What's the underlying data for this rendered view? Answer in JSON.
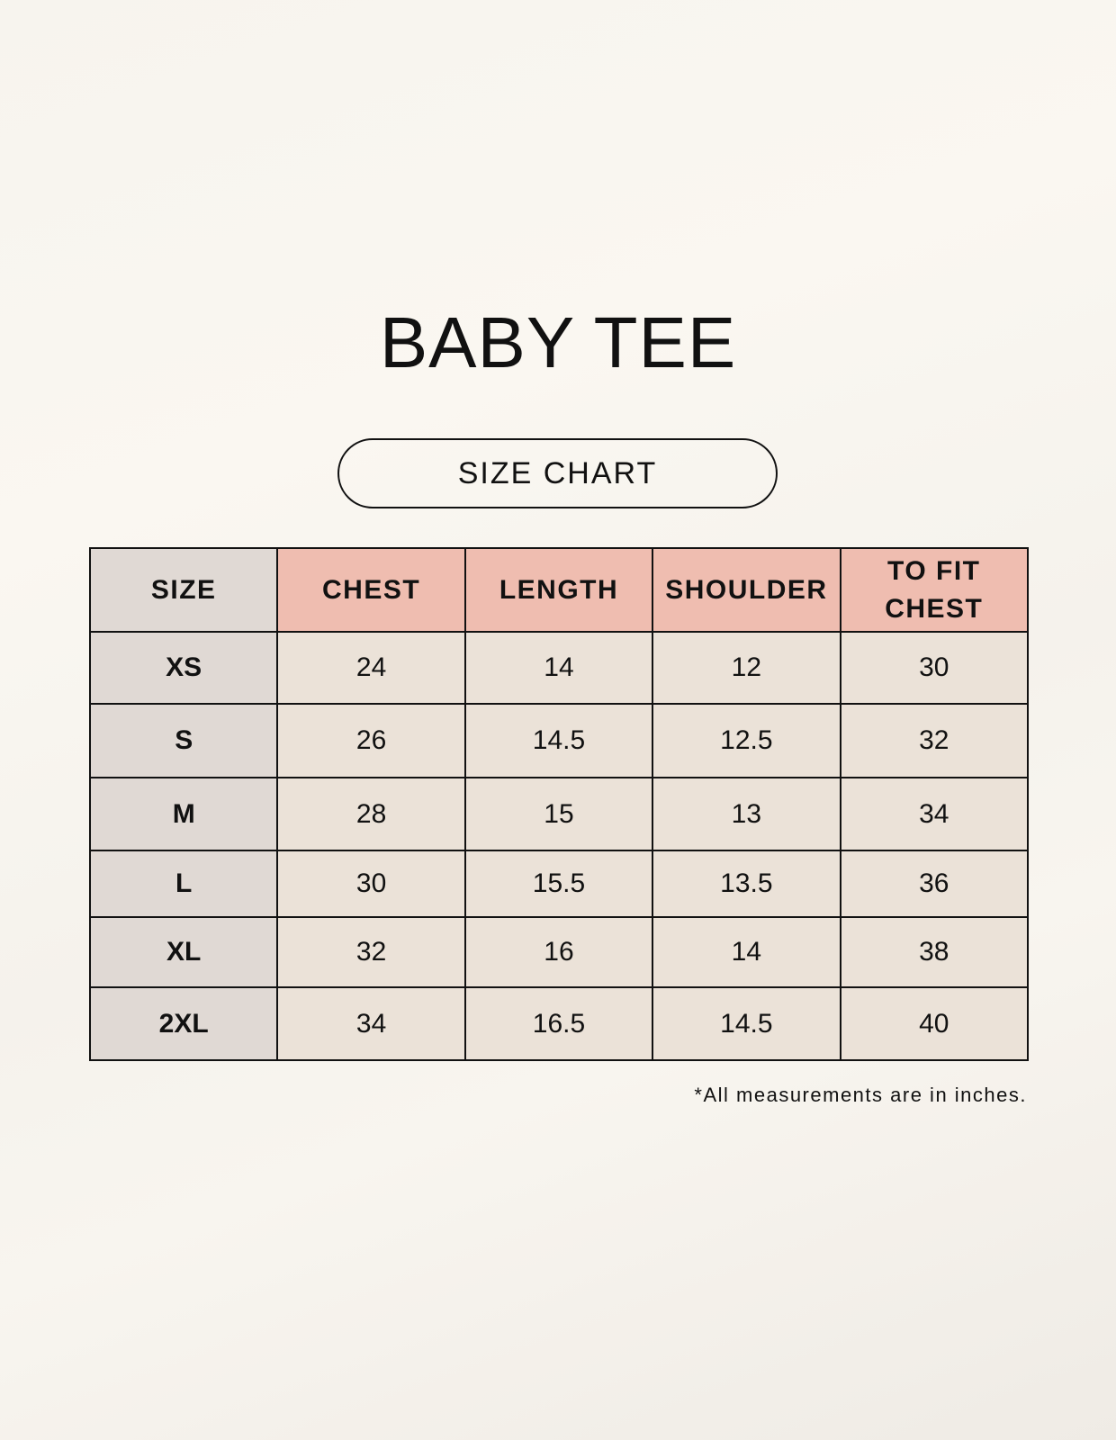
{
  "title": "BABY TEE",
  "subtitle": "SIZE CHART",
  "table": {
    "headers": [
      "SIZE",
      "CHEST",
      "LENGTH",
      "SHOULDER",
      "TO FIT CHEST"
    ],
    "rows": [
      [
        "XS",
        "24",
        "14",
        "12",
        "30"
      ],
      [
        "S",
        "26",
        "14.5",
        "12.5",
        "32"
      ],
      [
        "M",
        "28",
        "15",
        "13",
        "34"
      ],
      [
        "L",
        "30",
        "15.5",
        "13.5",
        "36"
      ],
      [
        "XL",
        "32",
        "16",
        "14",
        "38"
      ],
      [
        "2XL",
        "34",
        "16.5",
        "14.5",
        "40"
      ]
    ]
  },
  "footnote": "*All measurements are in inches.",
  "colors": {
    "header_accent": "#efbdb0",
    "size_column": "#e0d9d4",
    "cell": "#ebe2d8"
  }
}
